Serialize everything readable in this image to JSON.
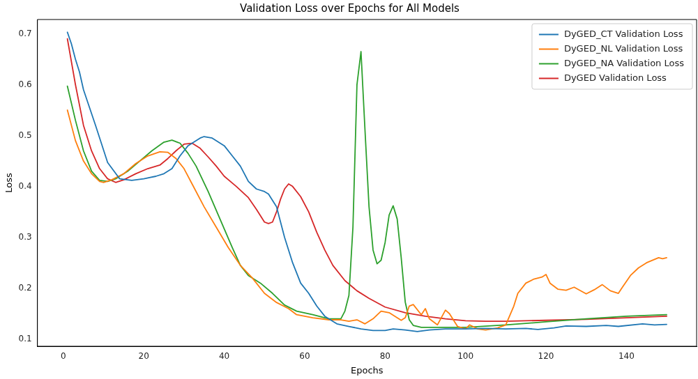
{
  "chart_data": {
    "type": "line",
    "title": "Validation Loss over Epochs for All Models",
    "xlabel": "Epochs",
    "ylabel": "Loss",
    "xlim": [
      -6.45,
      157.45
    ],
    "ylim": [
      0.086,
      0.728
    ],
    "xticks": [
      0,
      20,
      40,
      60,
      80,
      100,
      120,
      140
    ],
    "yticks": [
      0.1,
      0.2,
      0.3,
      0.4,
      0.5,
      0.6,
      0.7
    ],
    "grid": false,
    "legend": "top right",
    "marker": "none",
    "line_style": "solid",
    "series": [
      {
        "name": "DyGED_CT Validation Loss",
        "color": "#1f77b4",
        "x": [
          1,
          2,
          3,
          4,
          5,
          8,
          11,
          14,
          17,
          20,
          23,
          25,
          27,
          29,
          31,
          34,
          35,
          37,
          40,
          42,
          44,
          46,
          48,
          50,
          51,
          53,
          55,
          57,
          59,
          61,
          63,
          65,
          68,
          71,
          74,
          77,
          80,
          82,
          85,
          88,
          91,
          95,
          100,
          105,
          110,
          115,
          118,
          122,
          125,
          130,
          135,
          138,
          144,
          147,
          150
        ],
        "values": [
          0.703,
          0.68,
          0.65,
          0.625,
          0.59,
          0.52,
          0.447,
          0.415,
          0.412,
          0.415,
          0.42,
          0.425,
          0.435,
          0.46,
          0.48,
          0.495,
          0.498,
          0.495,
          0.48,
          0.46,
          0.44,
          0.41,
          0.395,
          0.39,
          0.385,
          0.36,
          0.3,
          0.25,
          0.21,
          0.19,
          0.165,
          0.145,
          0.13,
          0.125,
          0.12,
          0.117,
          0.117,
          0.12,
          0.118,
          0.115,
          0.118,
          0.12,
          0.12,
          0.121,
          0.12,
          0.121,
          0.119,
          0.122,
          0.126,
          0.125,
          0.127,
          0.125,
          0.13,
          0.128,
          0.129
        ]
      },
      {
        "name": "DyGED_NL Validation Loss",
        "color": "#ff7f0e",
        "x": [
          1,
          3,
          5,
          7,
          9,
          10,
          12,
          15,
          18,
          21,
          24,
          26,
          28,
          30,
          32,
          35,
          38,
          41,
          44,
          47,
          50,
          53,
          56,
          58,
          62,
          66,
          69,
          71,
          73,
          75,
          77,
          79,
          81,
          84,
          85,
          86,
          87,
          89,
          90,
          91,
          93,
          95,
          96,
          98,
          100,
          101,
          103,
          105,
          108,
          110,
          112,
          113,
          115,
          117,
          119,
          120,
          121,
          123,
          125,
          127,
          130,
          132,
          134,
          136,
          138,
          139,
          141,
          143,
          145,
          148,
          149,
          150
        ],
        "values": [
          0.55,
          0.49,
          0.45,
          0.425,
          0.41,
          0.408,
          0.413,
          0.425,
          0.445,
          0.46,
          0.468,
          0.467,
          0.455,
          0.435,
          0.405,
          0.36,
          0.32,
          0.28,
          0.245,
          0.22,
          0.19,
          0.172,
          0.16,
          0.148,
          0.142,
          0.138,
          0.138,
          0.135,
          0.138,
          0.13,
          0.14,
          0.155,
          0.152,
          0.137,
          0.142,
          0.165,
          0.168,
          0.148,
          0.16,
          0.14,
          0.128,
          0.157,
          0.15,
          0.125,
          0.12,
          0.128,
          0.12,
          0.118,
          0.122,
          0.128,
          0.165,
          0.19,
          0.21,
          0.218,
          0.222,
          0.227,
          0.21,
          0.198,
          0.196,
          0.202,
          0.189,
          0.197,
          0.207,
          0.195,
          0.19,
          0.202,
          0.225,
          0.24,
          0.25,
          0.26,
          0.258,
          0.26
        ]
      },
      {
        "name": "DyGED_NA Validation Loss",
        "color": "#2ca02c",
        "x": [
          1,
          3,
          5,
          7,
          9,
          11,
          13,
          16,
          19,
          22,
          25,
          27,
          29,
          31,
          33,
          36,
          39,
          42,
          44,
          46,
          49,
          52,
          55,
          58,
          62,
          66,
          69,
          70,
          71,
          72,
          73,
          74,
          75,
          76,
          77,
          78,
          79,
          80,
          81,
          82,
          83,
          84,
          85,
          86,
          87,
          89,
          95,
          100,
          110,
          120,
          130,
          140,
          150
        ],
        "values": [
          0.597,
          0.53,
          0.47,
          0.43,
          0.412,
          0.41,
          0.415,
          0.43,
          0.45,
          0.47,
          0.487,
          0.491,
          0.485,
          0.465,
          0.44,
          0.39,
          0.335,
          0.28,
          0.245,
          0.225,
          0.21,
          0.19,
          0.167,
          0.155,
          0.148,
          0.14,
          0.14,
          0.155,
          0.186,
          0.32,
          0.6,
          0.665,
          0.51,
          0.36,
          0.275,
          0.248,
          0.255,
          0.29,
          0.344,
          0.362,
          0.336,
          0.26,
          0.173,
          0.138,
          0.127,
          0.123,
          0.123,
          0.123,
          0.128,
          0.134,
          0.14,
          0.145,
          0.148
        ]
      },
      {
        "name": "DyGED Validation Loss",
        "color": "#d62728",
        "x": [
          1,
          3,
          5,
          7,
          9,
          11,
          13,
          15,
          18,
          21,
          24,
          26,
          28,
          30,
          32,
          34,
          36,
          38,
          40,
          43,
          46,
          48,
          50,
          51,
          52,
          53,
          54,
          55,
          56,
          57,
          59,
          61,
          63,
          65,
          67,
          70,
          73,
          76,
          80,
          85,
          90,
          95,
          100,
          105,
          110,
          120,
          130,
          140,
          150
        ],
        "values": [
          0.69,
          0.6,
          0.52,
          0.47,
          0.435,
          0.415,
          0.408,
          0.413,
          0.425,
          0.435,
          0.442,
          0.455,
          0.47,
          0.483,
          0.485,
          0.475,
          0.458,
          0.44,
          0.42,
          0.4,
          0.378,
          0.355,
          0.33,
          0.327,
          0.33,
          0.35,
          0.375,
          0.395,
          0.405,
          0.4,
          0.38,
          0.35,
          0.31,
          0.275,
          0.245,
          0.215,
          0.195,
          0.18,
          0.163,
          0.152,
          0.145,
          0.14,
          0.136,
          0.135,
          0.135,
          0.137,
          0.139,
          0.142,
          0.145
        ]
      }
    ]
  }
}
